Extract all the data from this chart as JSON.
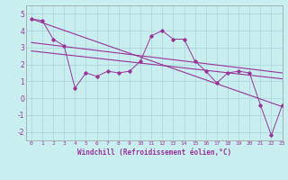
{
  "xlabel": "Windchill (Refroidissement éolien,°C)",
  "bg_color": "#c8eef0",
  "grid_color": "#b0d8dc",
  "line_color": "#993399",
  "xlim": [
    -0.5,
    23
  ],
  "ylim": [
    -2.5,
    5.5
  ],
  "yticks": [
    -2,
    -1,
    0,
    1,
    2,
    3,
    4,
    5
  ],
  "xticks": [
    0,
    1,
    2,
    3,
    4,
    5,
    6,
    7,
    8,
    9,
    10,
    11,
    12,
    13,
    14,
    15,
    16,
    17,
    18,
    19,
    20,
    21,
    22,
    23
  ],
  "data_x": [
    0,
    1,
    2,
    3,
    4,
    5,
    6,
    7,
    8,
    9,
    10,
    11,
    12,
    13,
    14,
    15,
    16,
    17,
    18,
    19,
    20,
    21,
    22,
    23
  ],
  "data_y": [
    4.7,
    4.6,
    3.5,
    3.1,
    0.6,
    1.5,
    1.3,
    1.6,
    1.5,
    1.6,
    2.2,
    3.7,
    4.0,
    3.5,
    3.5,
    2.2,
    1.6,
    0.9,
    1.5,
    1.6,
    1.5,
    -0.4,
    -2.2,
    -0.4
  ],
  "line1_x": [
    0,
    23
  ],
  "line1_y": [
    4.7,
    -0.5
  ],
  "line2_x": [
    0,
    23
  ],
  "line2_y": [
    3.3,
    1.5
  ],
  "line3_x": [
    0,
    23
  ],
  "line3_y": [
    2.8,
    1.15
  ]
}
